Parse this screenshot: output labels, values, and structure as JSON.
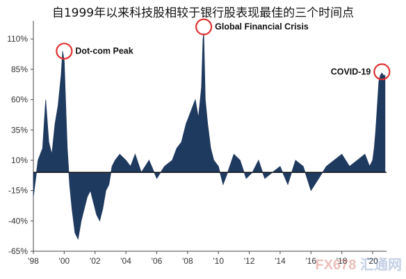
{
  "chart_data": {
    "type": "area",
    "title": "自1999年以来科技股相较于银行股表现最佳的三个时间点",
    "xlabel": "",
    "ylabel": "",
    "series_color": "#1f3a5f",
    "y_ticks": [
      "110%",
      "85%",
      "60%",
      "35%",
      "10%",
      "-15%",
      "-40%",
      "-65%"
    ],
    "y_tick_values": [
      110,
      85,
      60,
      35,
      10,
      -15,
      -40,
      -65
    ],
    "ylim": [
      -65,
      125
    ],
    "x_ticks": [
      "'98",
      "'00",
      "'02",
      "'04",
      "'06",
      "'08",
      "'10",
      "'12",
      "'14",
      "'16",
      "'18",
      "'20"
    ],
    "x_tick_values": [
      1998,
      2000,
      2002,
      2004,
      2006,
      2008,
      2010,
      2012,
      2014,
      2016,
      2018,
      2020
    ],
    "xlim": [
      1998,
      2020.9
    ],
    "x": [
      1998.0,
      1998.3,
      1998.6,
      1998.8,
      1999.0,
      1999.2,
      1999.4,
      1999.6,
      1999.8,
      1999.9,
      2000.0,
      2000.1,
      2000.2,
      2000.35,
      2000.5,
      2000.7,
      2000.9,
      2001.1,
      2001.3,
      2001.5,
      2001.7,
      2001.9,
      2002.1,
      2002.3,
      2002.5,
      2002.7,
      2002.9,
      2003.1,
      2003.3,
      2003.6,
      2004.0,
      2004.3,
      2004.6,
      2005.0,
      2005.5,
      2006.0,
      2006.5,
      2007.0,
      2007.3,
      2007.6,
      2007.9,
      2008.2,
      2008.5,
      2008.7,
      2008.9,
      2009.0,
      2009.05,
      2009.15,
      2009.3,
      2009.5,
      2009.7,
      2010.0,
      2010.3,
      2010.6,
      2011.0,
      2011.4,
      2011.8,
      2012.2,
      2012.6,
      2013.0,
      2013.5,
      2014.0,
      2014.5,
      2015.0,
      2015.5,
      2016.0,
      2016.5,
      2017.0,
      2017.5,
      2018.0,
      2018.5,
      2019.0,
      2019.5,
      2019.8,
      2020.0,
      2020.1,
      2020.2,
      2020.3,
      2020.4,
      2020.5,
      2020.6,
      2020.7,
      2020.8
    ],
    "values": [
      -20,
      10,
      20,
      60,
      25,
      15,
      40,
      55,
      80,
      100,
      92,
      55,
      20,
      -10,
      -30,
      -50,
      -55,
      -40,
      -30,
      -20,
      -15,
      -25,
      -35,
      -40,
      -30,
      -15,
      -10,
      5,
      10,
      15,
      10,
      5,
      15,
      0,
      10,
      -5,
      5,
      10,
      20,
      25,
      40,
      50,
      60,
      45,
      70,
      110,
      115,
      60,
      40,
      20,
      10,
      5,
      -10,
      0,
      15,
      10,
      -5,
      0,
      10,
      -5,
      0,
      5,
      -10,
      10,
      5,
      -15,
      -5,
      5,
      10,
      15,
      5,
      10,
      15,
      5,
      10,
      20,
      35,
      55,
      75,
      80,
      82,
      80,
      80
    ],
    "annotations": [
      {
        "label": "Dot-com Peak",
        "x": 2000.0,
        "y": 100
      },
      {
        "label": "Global Financial Crisis",
        "x": 2009.05,
        "y": 120
      },
      {
        "label": "COVID-19",
        "x": 2020.6,
        "y": 83
      }
    ],
    "grid": false,
    "legend": "none"
  },
  "watermark": {
    "brand": "FX678",
    "cn": "汇通网"
  }
}
